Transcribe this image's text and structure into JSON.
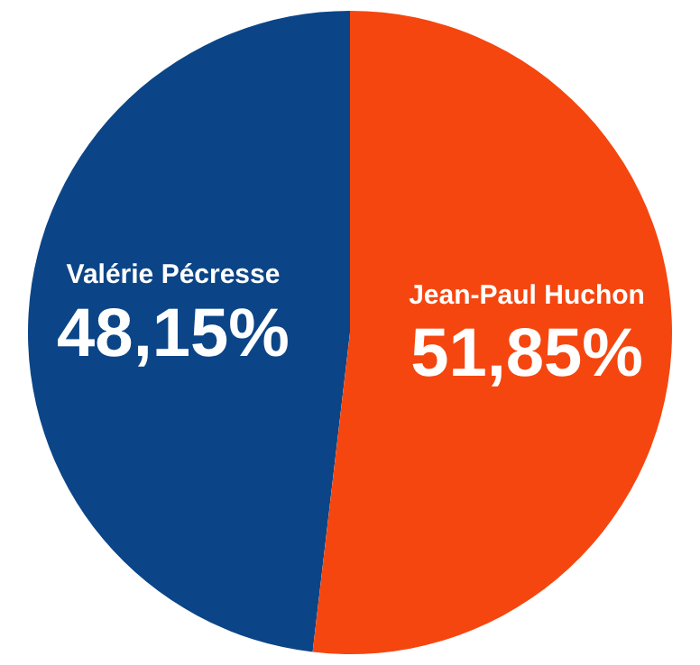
{
  "chart_data": {
    "type": "pie",
    "categories": [
      "Valérie Pécresse",
      "Jean-Paul Huchon"
    ],
    "values": [
      48.15,
      51.85
    ],
    "colors": [
      "#0b4587",
      "#f5460f"
    ],
    "value_labels": [
      "48,15%",
      "51,85%"
    ],
    "legend": false
  }
}
